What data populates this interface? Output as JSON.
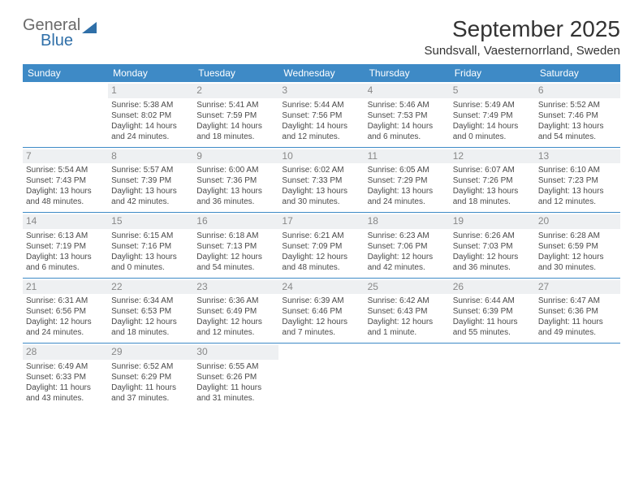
{
  "branding": {
    "word1": "General",
    "word2": "Blue"
  },
  "title": "September 2025",
  "location": "Sundsvall, Vaesternorrland, Sweden",
  "day_headers": [
    "Sunday",
    "Monday",
    "Tuesday",
    "Wednesday",
    "Thursday",
    "Friday",
    "Saturday"
  ],
  "colors": {
    "header_bg": "#3e8ac6",
    "header_fg": "#ffffff",
    "daynum_bg": "#eef0f2",
    "daynum_fg": "#888888",
    "row_border": "#3e8ac6",
    "logo_accent": "#2f6fa8"
  },
  "weeks": [
    [
      {
        "day": "",
        "sunrise": "",
        "sunset": "",
        "daylight": ""
      },
      {
        "day": "1",
        "sunrise": "Sunrise: 5:38 AM",
        "sunset": "Sunset: 8:02 PM",
        "daylight": "Daylight: 14 hours and 24 minutes."
      },
      {
        "day": "2",
        "sunrise": "Sunrise: 5:41 AM",
        "sunset": "Sunset: 7:59 PM",
        "daylight": "Daylight: 14 hours and 18 minutes."
      },
      {
        "day": "3",
        "sunrise": "Sunrise: 5:44 AM",
        "sunset": "Sunset: 7:56 PM",
        "daylight": "Daylight: 14 hours and 12 minutes."
      },
      {
        "day": "4",
        "sunrise": "Sunrise: 5:46 AM",
        "sunset": "Sunset: 7:53 PM",
        "daylight": "Daylight: 14 hours and 6 minutes."
      },
      {
        "day": "5",
        "sunrise": "Sunrise: 5:49 AM",
        "sunset": "Sunset: 7:49 PM",
        "daylight": "Daylight: 14 hours and 0 minutes."
      },
      {
        "day": "6",
        "sunrise": "Sunrise: 5:52 AM",
        "sunset": "Sunset: 7:46 PM",
        "daylight": "Daylight: 13 hours and 54 minutes."
      }
    ],
    [
      {
        "day": "7",
        "sunrise": "Sunrise: 5:54 AM",
        "sunset": "Sunset: 7:43 PM",
        "daylight": "Daylight: 13 hours and 48 minutes."
      },
      {
        "day": "8",
        "sunrise": "Sunrise: 5:57 AM",
        "sunset": "Sunset: 7:39 PM",
        "daylight": "Daylight: 13 hours and 42 minutes."
      },
      {
        "day": "9",
        "sunrise": "Sunrise: 6:00 AM",
        "sunset": "Sunset: 7:36 PM",
        "daylight": "Daylight: 13 hours and 36 minutes."
      },
      {
        "day": "10",
        "sunrise": "Sunrise: 6:02 AM",
        "sunset": "Sunset: 7:33 PM",
        "daylight": "Daylight: 13 hours and 30 minutes."
      },
      {
        "day": "11",
        "sunrise": "Sunrise: 6:05 AM",
        "sunset": "Sunset: 7:29 PM",
        "daylight": "Daylight: 13 hours and 24 minutes."
      },
      {
        "day": "12",
        "sunrise": "Sunrise: 6:07 AM",
        "sunset": "Sunset: 7:26 PM",
        "daylight": "Daylight: 13 hours and 18 minutes."
      },
      {
        "day": "13",
        "sunrise": "Sunrise: 6:10 AM",
        "sunset": "Sunset: 7:23 PM",
        "daylight": "Daylight: 13 hours and 12 minutes."
      }
    ],
    [
      {
        "day": "14",
        "sunrise": "Sunrise: 6:13 AM",
        "sunset": "Sunset: 7:19 PM",
        "daylight": "Daylight: 13 hours and 6 minutes."
      },
      {
        "day": "15",
        "sunrise": "Sunrise: 6:15 AM",
        "sunset": "Sunset: 7:16 PM",
        "daylight": "Daylight: 13 hours and 0 minutes."
      },
      {
        "day": "16",
        "sunrise": "Sunrise: 6:18 AM",
        "sunset": "Sunset: 7:13 PM",
        "daylight": "Daylight: 12 hours and 54 minutes."
      },
      {
        "day": "17",
        "sunrise": "Sunrise: 6:21 AM",
        "sunset": "Sunset: 7:09 PM",
        "daylight": "Daylight: 12 hours and 48 minutes."
      },
      {
        "day": "18",
        "sunrise": "Sunrise: 6:23 AM",
        "sunset": "Sunset: 7:06 PM",
        "daylight": "Daylight: 12 hours and 42 minutes."
      },
      {
        "day": "19",
        "sunrise": "Sunrise: 6:26 AM",
        "sunset": "Sunset: 7:03 PM",
        "daylight": "Daylight: 12 hours and 36 minutes."
      },
      {
        "day": "20",
        "sunrise": "Sunrise: 6:28 AM",
        "sunset": "Sunset: 6:59 PM",
        "daylight": "Daylight: 12 hours and 30 minutes."
      }
    ],
    [
      {
        "day": "21",
        "sunrise": "Sunrise: 6:31 AM",
        "sunset": "Sunset: 6:56 PM",
        "daylight": "Daylight: 12 hours and 24 minutes."
      },
      {
        "day": "22",
        "sunrise": "Sunrise: 6:34 AM",
        "sunset": "Sunset: 6:53 PM",
        "daylight": "Daylight: 12 hours and 18 minutes."
      },
      {
        "day": "23",
        "sunrise": "Sunrise: 6:36 AM",
        "sunset": "Sunset: 6:49 PM",
        "daylight": "Daylight: 12 hours and 12 minutes."
      },
      {
        "day": "24",
        "sunrise": "Sunrise: 6:39 AM",
        "sunset": "Sunset: 6:46 PM",
        "daylight": "Daylight: 12 hours and 7 minutes."
      },
      {
        "day": "25",
        "sunrise": "Sunrise: 6:42 AM",
        "sunset": "Sunset: 6:43 PM",
        "daylight": "Daylight: 12 hours and 1 minute."
      },
      {
        "day": "26",
        "sunrise": "Sunrise: 6:44 AM",
        "sunset": "Sunset: 6:39 PM",
        "daylight": "Daylight: 11 hours and 55 minutes."
      },
      {
        "day": "27",
        "sunrise": "Sunrise: 6:47 AM",
        "sunset": "Sunset: 6:36 PM",
        "daylight": "Daylight: 11 hours and 49 minutes."
      }
    ],
    [
      {
        "day": "28",
        "sunrise": "Sunrise: 6:49 AM",
        "sunset": "Sunset: 6:33 PM",
        "daylight": "Daylight: 11 hours and 43 minutes."
      },
      {
        "day": "29",
        "sunrise": "Sunrise: 6:52 AM",
        "sunset": "Sunset: 6:29 PM",
        "daylight": "Daylight: 11 hours and 37 minutes."
      },
      {
        "day": "30",
        "sunrise": "Sunrise: 6:55 AM",
        "sunset": "Sunset: 6:26 PM",
        "daylight": "Daylight: 11 hours and 31 minutes."
      },
      {
        "day": "",
        "sunrise": "",
        "sunset": "",
        "daylight": ""
      },
      {
        "day": "",
        "sunrise": "",
        "sunset": "",
        "daylight": ""
      },
      {
        "day": "",
        "sunrise": "",
        "sunset": "",
        "daylight": ""
      },
      {
        "day": "",
        "sunrise": "",
        "sunset": "",
        "daylight": ""
      }
    ]
  ]
}
